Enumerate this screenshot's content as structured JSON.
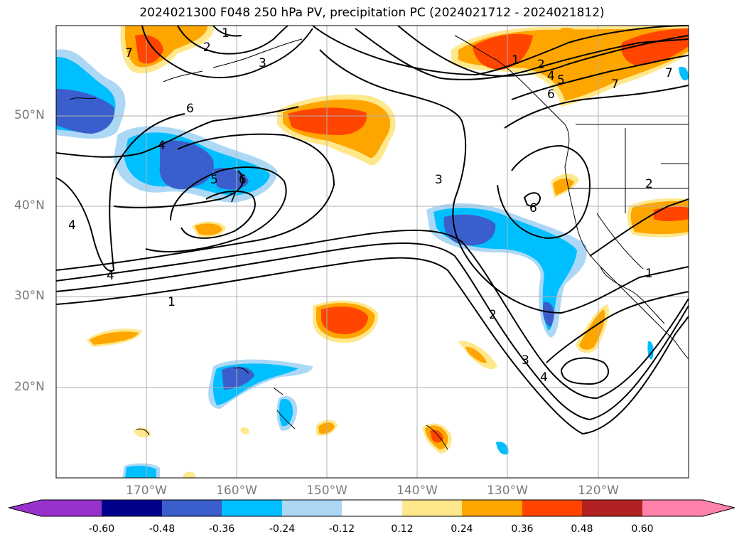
{
  "title": "2024021300 F048 250 hPa PV, precipitation PC (2024021712 - 2024021812)",
  "axes": {
    "lat_labels": [
      "50°N",
      "40°N",
      "30°N",
      "20°N"
    ],
    "lon_labels": [
      "170°W",
      "160°W",
      "150°W",
      "140°W",
      "130°W",
      "120°W"
    ]
  },
  "pv_contour_labels": [
    "1",
    "2",
    "3",
    "4",
    "5",
    "6",
    "7"
  ],
  "colorbar": {
    "ticks": [
      "-0.60",
      "-0.48",
      "-0.36",
      "-0.24",
      "-0.12",
      "0.12",
      "0.24",
      "0.36",
      "0.48",
      "0.60"
    ],
    "colors": [
      "#9932cc",
      "#00008b",
      "#3a5fcd",
      "#00bfff",
      "#add8f5",
      "#ffffff",
      "#ffe88c",
      "#ffa500",
      "#ff4500",
      "#b22222",
      "#ff82ab"
    ]
  },
  "colors": {
    "blue_strong": "#3a5fcd",
    "blue_mid": "#00bfff",
    "blue_light": "#add8f5",
    "orange_light": "#ffe88c",
    "orange_mid": "#ffa500",
    "orange_strong": "#ff4500"
  }
}
